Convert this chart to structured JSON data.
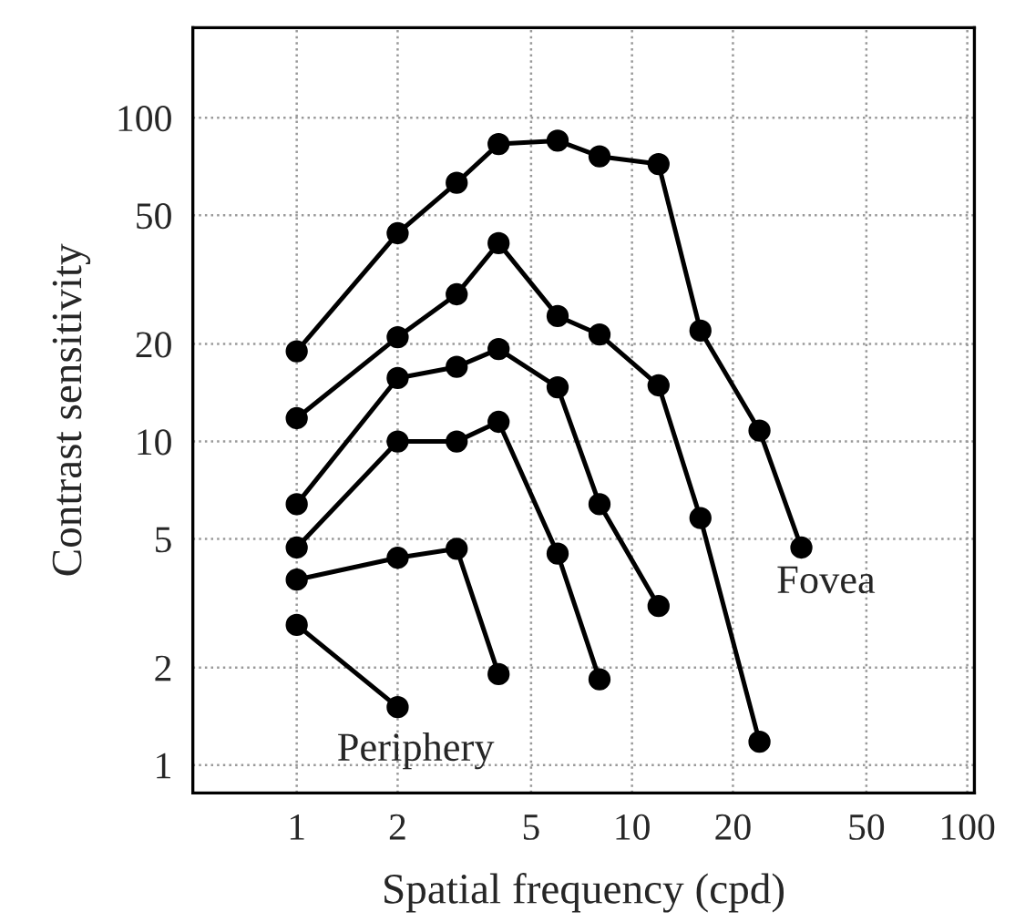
{
  "chart_data": {
    "type": "line",
    "xlabel": "Spatial frequency (cpd)",
    "ylabel": "Contrast sensitivity",
    "log": "xy",
    "grid": true,
    "marker": "circle",
    "line_style": "solid",
    "xlim": [
      0.49,
      105
    ],
    "ylim": [
      0.82,
      190
    ],
    "xticks": [
      1,
      2,
      5,
      10,
      20,
      50,
      100
    ],
    "yticks": [
      1,
      2,
      5,
      10,
      20,
      50,
      100
    ],
    "series": [
      {
        "color": "#000000",
        "x": [
          1,
          2,
          3,
          4,
          6,
          8,
          12,
          16,
          24,
          32
        ],
        "values": [
          19,
          44,
          63,
          83,
          85,
          76,
          72,
          22,
          10.8,
          4.7
        ]
      },
      {
        "color": "#000000",
        "x": [
          1,
          2,
          3,
          4,
          6,
          8,
          12,
          16,
          24
        ],
        "values": [
          11.8,
          21,
          28.5,
          41,
          24.4,
          21.4,
          14.9,
          5.8,
          1.18
        ]
      },
      {
        "color": "#000000",
        "x": [
          1,
          2,
          3,
          4,
          6,
          8,
          12
        ],
        "values": [
          6.4,
          15.7,
          17,
          19.3,
          14.7,
          6.4,
          3.1
        ]
      },
      {
        "color": "#000000",
        "x": [
          1,
          2,
          3,
          4,
          6,
          8
        ],
        "values": [
          4.7,
          10,
          10,
          11.5,
          4.5,
          1.84
        ]
      },
      {
        "color": "#000000",
        "x": [
          1,
          2,
          3,
          4
        ],
        "values": [
          3.74,
          4.37,
          4.66,
          1.91
        ]
      },
      {
        "color": "#000000",
        "x": [
          1,
          2
        ],
        "values": [
          2.71,
          1.51
        ]
      }
    ],
    "annotations": [
      "Periphery",
      "Fovea"
    ]
  }
}
